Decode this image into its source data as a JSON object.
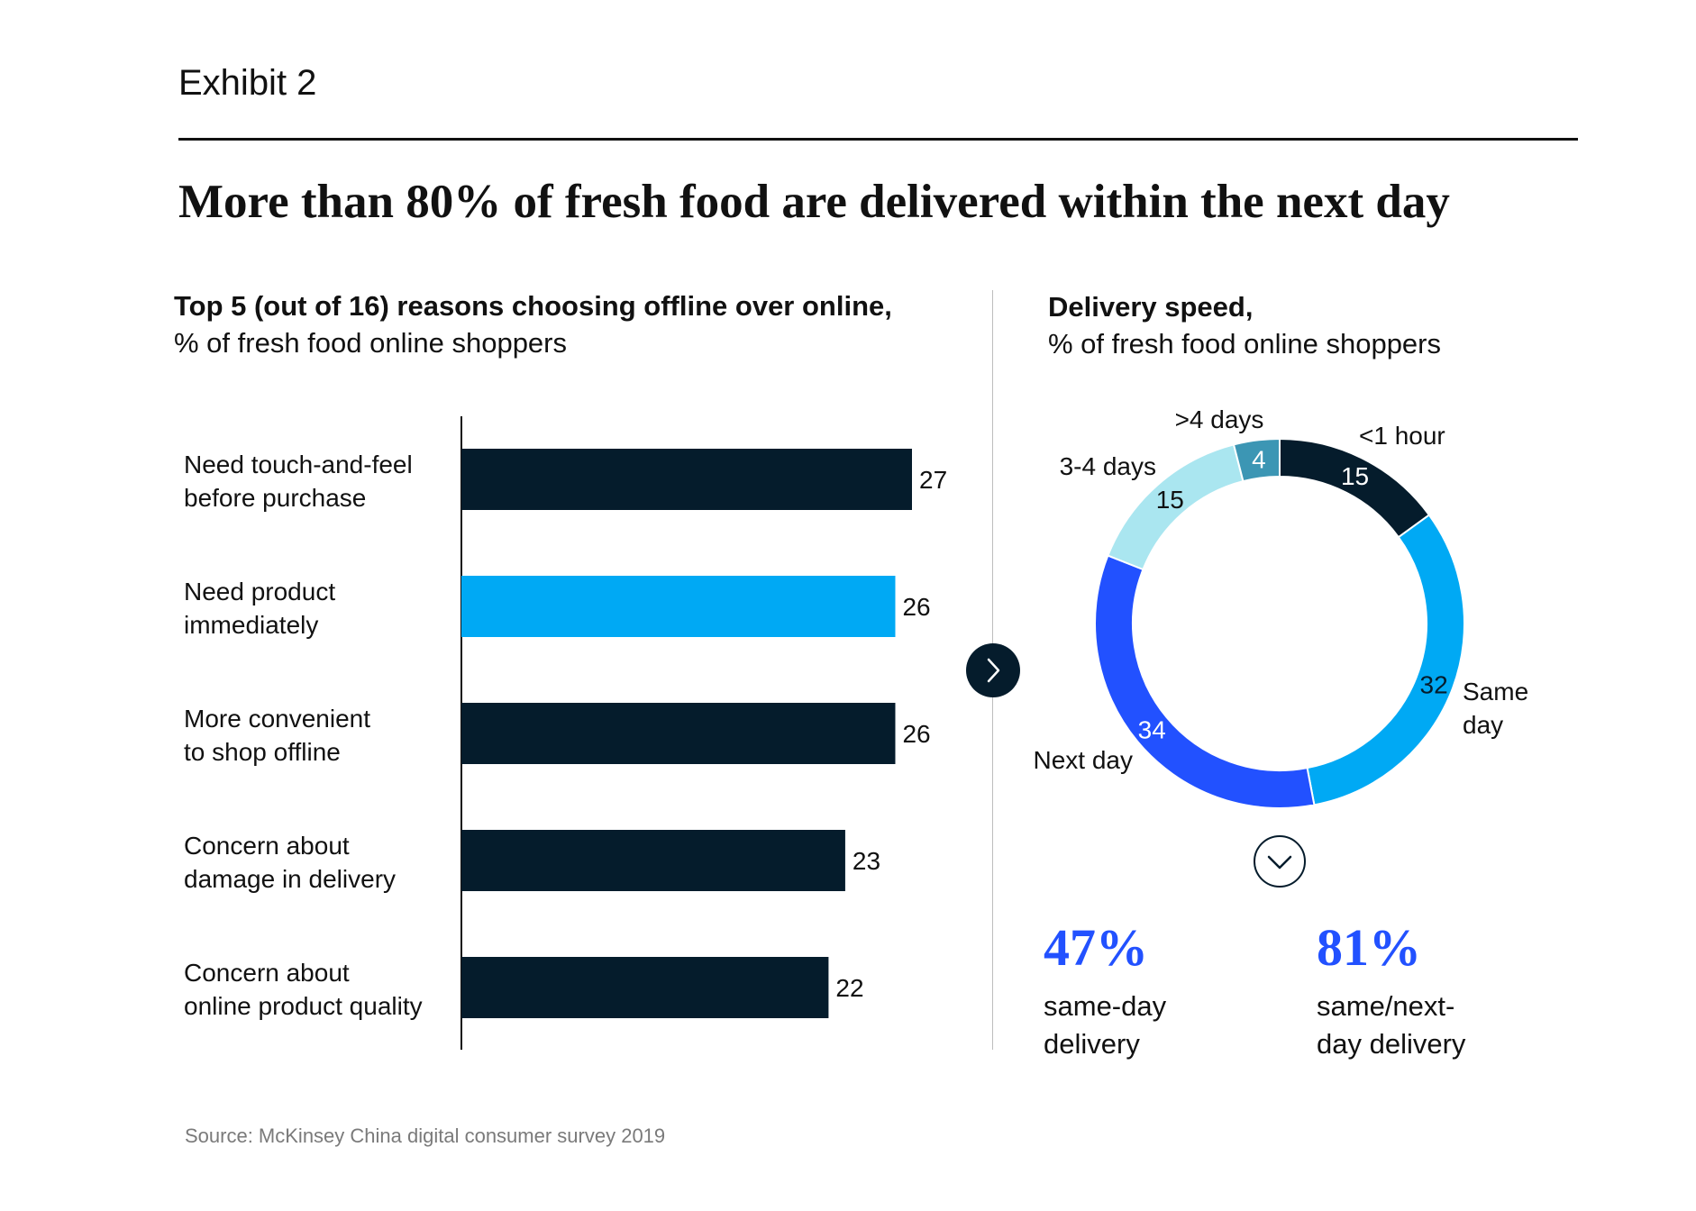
{
  "header": {
    "exhibit": "Exhibit 2",
    "title": "More than 80% of fresh food are delivered within the next day"
  },
  "left_panel": {
    "title": "Top 5 (out of 16) reasons choosing offline over online,",
    "subtitle": "% of fresh food online shoppers"
  },
  "right_panel": {
    "title": "Delivery speed,",
    "subtitle": "% of fresh food online shoppers"
  },
  "stats": [
    {
      "value": "47%",
      "label_line1": "same-day",
      "label_line2": "delivery"
    },
    {
      "value": "81%",
      "label_line1": "same/next-",
      "label_line2": "day delivery"
    }
  ],
  "source": "Source: McKinsey China digital consumer survey 2019",
  "icons": {
    "arrow_right": "chevron-right-icon",
    "arrow_down": "chevron-down-icon"
  },
  "chart_data": [
    {
      "type": "bar",
      "orientation": "horizontal",
      "categories": [
        [
          "Need touch-and-feel",
          "before purchase"
        ],
        [
          "Need product",
          "immediately"
        ],
        [
          "More convenient",
          "to shop offline"
        ],
        [
          "Concern about",
          "damage in delivery"
        ],
        [
          "Concern about",
          "online product quality"
        ]
      ],
      "values": [
        27,
        26,
        26,
        23,
        22
      ],
      "colors": [
        "#051c2c",
        "#00a9f4",
        "#051c2c",
        "#051c2c",
        "#051c2c"
      ],
      "xlim": [
        0,
        27
      ]
    },
    {
      "type": "pie",
      "style": "donut",
      "slices": [
        {
          "label": "<1 hour",
          "value": 15,
          "color": "#051c2c"
        },
        {
          "label": "Same day",
          "value": 32,
          "color": "#00a9f4"
        },
        {
          "label": "Next day",
          "value": 34,
          "color": "#2251ff"
        },
        {
          "label": "3-4 days",
          "value": 15,
          "color": "#aae6f0"
        },
        {
          "label": ">4 days",
          "value": 4,
          "color": "#3c96b4"
        }
      ]
    }
  ]
}
